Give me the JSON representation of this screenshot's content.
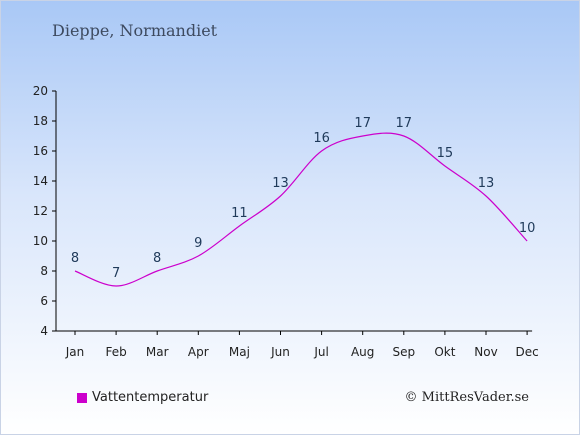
{
  "title": "Dieppe, Normandiet",
  "legend": {
    "label": "Vattentemperatur",
    "color": "#cc00cc"
  },
  "copyright": "© MittResVader.se",
  "chart_data": {
    "type": "line",
    "categories": [
      "Jan",
      "Feb",
      "Mar",
      "Apr",
      "Maj",
      "Jun",
      "Jul",
      "Aug",
      "Sep",
      "Okt",
      "Nov",
      "Dec"
    ],
    "series": [
      {
        "name": "Vattentemperatur",
        "values": [
          8,
          7,
          8,
          9,
          11,
          13,
          16,
          17,
          17,
          15,
          13,
          10
        ],
        "color": "#cc00cc"
      }
    ],
    "ylim": [
      4,
      20
    ],
    "yticks": [
      4,
      6,
      8,
      10,
      12,
      14,
      16,
      18,
      20
    ],
    "grid": false,
    "legend_position": "bottom-left"
  }
}
